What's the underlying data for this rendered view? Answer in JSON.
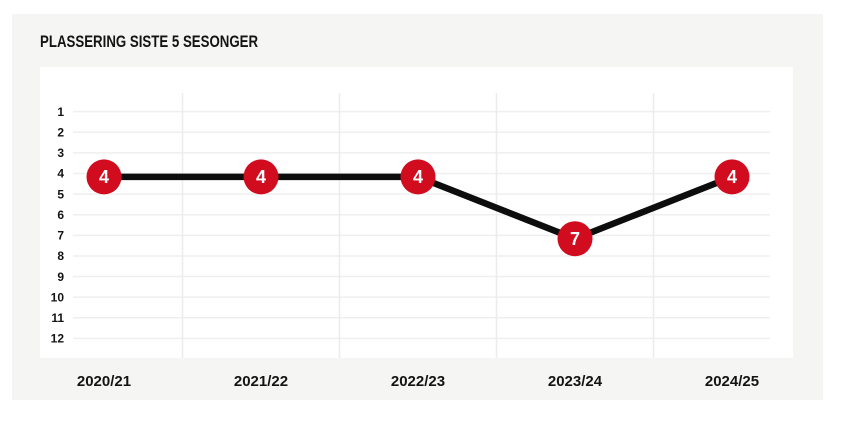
{
  "card": {
    "title": "PLASSERING SISTE 5 SESONGER"
  },
  "chart_data": {
    "type": "line",
    "title": "PLASSERING SISTE 5 SESONGER",
    "categories": [
      "2020/21",
      "2021/22",
      "2022/23",
      "2023/24",
      "2024/25"
    ],
    "series": [
      {
        "name": "Plassering",
        "values": [
          4,
          4,
          4,
          7,
          4
        ]
      }
    ],
    "point_labels": [
      "4",
      "4",
      "4",
      "7",
      "4"
    ],
    "yticks": [
      1,
      2,
      3,
      4,
      5,
      6,
      7,
      8,
      9,
      10,
      11,
      12
    ],
    "ylim": [
      1,
      12
    ],
    "y_inverted": true,
    "grid": "on",
    "legend": "none",
    "colors": {
      "card_bg": "#f5f5f4",
      "plot_bg": "#ffffff",
      "h_grid": "#efefef",
      "v_grid": "#ececec",
      "line": "#0d0d0d",
      "marker_fill": "#d10c1f",
      "marker_text": "#ffffff",
      "axis_text": "#141414"
    }
  }
}
